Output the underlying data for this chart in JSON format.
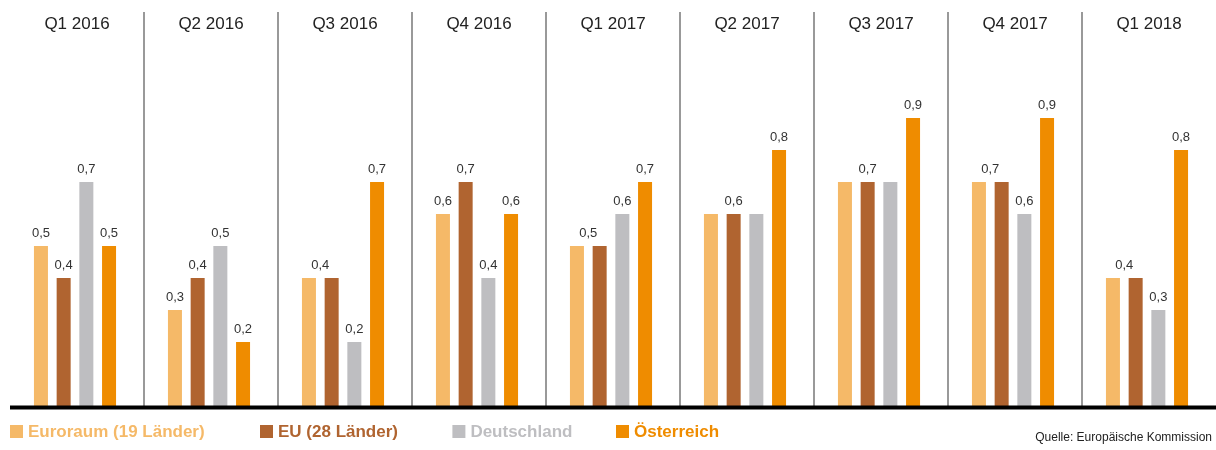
{
  "chart_data": {
    "type": "bar",
    "categories": [
      "Q1 2016",
      "Q2 2016",
      "Q3 2016",
      "Q4 2016",
      "Q1 2017",
      "Q2 2017",
      "Q3 2017",
      "Q4 2017",
      "Q1 2018"
    ],
    "series": [
      {
        "name": "Euroraum (19 Länder)",
        "color": "#f5b968",
        "values": [
          0.5,
          0.3,
          0.4,
          0.6,
          0.5,
          0.6,
          0.7,
          0.7,
          0.4
        ],
        "value_labels": [
          "0,5",
          "0,3",
          "0,4",
          "0,6",
          "0,5",
          null,
          null,
          "0,7",
          "0,4"
        ]
      },
      {
        "name": "EU (28 Länder)",
        "color": "#b06430",
        "values": [
          0.4,
          0.4,
          0.4,
          0.7,
          0.5,
          0.6,
          0.7,
          0.7,
          0.4
        ],
        "value_labels": [
          "0,4",
          "0,4",
          null,
          "0,7",
          null,
          "0,6",
          "0,7",
          null,
          null
        ]
      },
      {
        "name": "Deutschland",
        "color": "#bebec1",
        "values": [
          0.7,
          0.5,
          0.2,
          0.4,
          0.6,
          0.6,
          0.7,
          0.6,
          0.3
        ],
        "value_labels": [
          "0,7",
          "0,5",
          "0,2",
          "0,4",
          "0,6",
          null,
          null,
          "0,6",
          "0,3"
        ]
      },
      {
        "name": "Österreich",
        "color": "#ef8c00",
        "values": [
          0.5,
          0.2,
          0.7,
          0.6,
          0.7,
          0.8,
          0.9,
          0.9,
          0.8
        ],
        "value_labels": [
          "0,5",
          "0,2",
          "0,7",
          "0,6",
          "0,7",
          "0,8",
          "0,9",
          "0,9",
          "0,8"
        ]
      }
    ],
    "legend": "bottom left",
    "annotations": [
      "Quelle: Europäische Kommission"
    ]
  }
}
